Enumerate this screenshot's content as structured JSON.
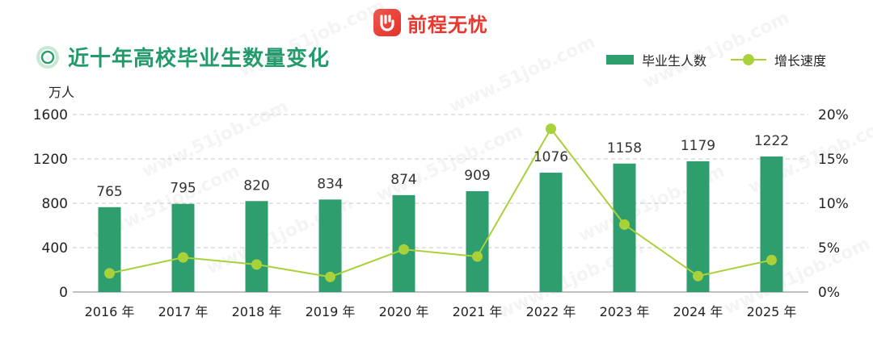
{
  "brand": {
    "name": "前程无忧",
    "accent": "#e8372e"
  },
  "watermark": {
    "text": "www.51job.com"
  },
  "chart_data": {
    "type": "bar+line",
    "title": "近十年高校毕业生数量变化",
    "y_left_label": "万人",
    "categories": [
      "2016 年",
      "2017 年",
      "2018 年",
      "2019 年",
      "2020 年",
      "2021 年",
      "2022 年",
      "2023 年",
      "2024 年",
      "2025 年"
    ],
    "series": [
      {
        "name": "毕业生人数",
        "type": "bar",
        "axis": "left",
        "color": "#2f9e6e",
        "values": [
          765,
          795,
          820,
          834,
          874,
          909,
          1076,
          1158,
          1179,
          1222
        ]
      },
      {
        "name": "增长速度",
        "type": "line",
        "axis": "right",
        "color": "#a9d13a",
        "values": [
          2.1,
          3.9,
          3.1,
          1.7,
          4.8,
          4.0,
          18.4,
          7.6,
          1.8,
          3.6
        ]
      }
    ],
    "y_left": {
      "min": 0,
      "max": 1600,
      "ticks": [
        0,
        400,
        800,
        1200,
        1600
      ]
    },
    "y_right": {
      "min": 0,
      "max": 20,
      "ticks": [
        "0%",
        "5%",
        "10%",
        "15%",
        "20%"
      ]
    },
    "grid": true,
    "legend_position": "top-right"
  }
}
